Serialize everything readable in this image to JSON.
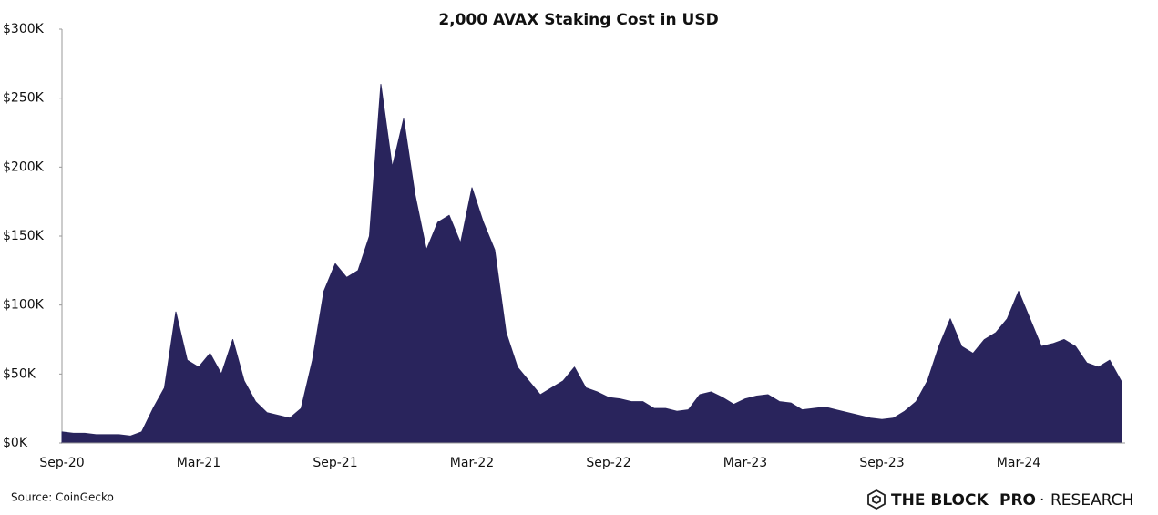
{
  "chart_data": {
    "type": "area",
    "title": "2,000 AVAX Staking Cost in USD",
    "categories": [
      "Sep-20",
      null,
      null,
      null,
      null,
      null,
      null,
      null,
      null,
      null,
      null,
      null,
      "Mar-21",
      null,
      null,
      null,
      null,
      null,
      null,
      null,
      null,
      null,
      null,
      null,
      "Sep-21",
      null,
      null,
      null,
      null,
      null,
      null,
      null,
      null,
      null,
      null,
      null,
      "Mar-22",
      null,
      null,
      null,
      null,
      null,
      null,
      null,
      null,
      null,
      null,
      null,
      "Sep-22",
      null,
      null,
      null,
      null,
      null,
      null,
      null,
      null,
      null,
      null,
      null,
      "Mar-23",
      null,
      null,
      null,
      null,
      null,
      null,
      null,
      null,
      null,
      null,
      null,
      "Sep-23",
      null,
      null,
      null,
      null,
      null,
      null,
      null,
      null,
      null,
      null,
      null,
      "Mar-24",
      null,
      null,
      null,
      null,
      null,
      null,
      null,
      null,
      null
    ],
    "values": [
      8,
      7,
      7,
      6,
      6,
      6,
      5,
      8,
      25,
      40,
      95,
      60,
      55,
      65,
      50,
      75,
      45,
      30,
      22,
      20,
      18,
      25,
      60,
      110,
      130,
      120,
      125,
      150,
      260,
      200,
      235,
      180,
      140,
      160,
      165,
      145,
      185,
      160,
      140,
      80,
      55,
      45,
      35,
      40,
      45,
      55,
      40,
      37,
      33,
      32,
      30,
      30,
      25,
      25,
      23,
      24,
      35,
      37,
      33,
      28,
      32,
      34,
      35,
      30,
      29,
      24,
      25,
      26,
      24,
      22,
      20,
      18,
      17,
      18,
      23,
      30,
      45,
      70,
      90,
      70,
      65,
      75,
      80,
      90,
      110,
      90,
      70,
      72,
      75,
      70,
      58,
      55,
      60,
      45
    ],
    "color": "#29245c",
    "ylim": [
      0,
      300
    ],
    "yticks": [
      {
        "value": 0,
        "label": "$0K"
      },
      {
        "value": 50,
        "label": "$50K"
      },
      {
        "value": 100,
        "label": "$100K"
      },
      {
        "value": 150,
        "label": "$150K"
      },
      {
        "value": 200,
        "label": "$200K"
      },
      {
        "value": 250,
        "label": "$250K"
      },
      {
        "value": 300,
        "label": "$300K"
      }
    ],
    "grid": false,
    "source": "Source: CoinGecko",
    "branding": [
      "THE BLOCK",
      "PRO",
      "·",
      "RESEARCH"
    ]
  }
}
